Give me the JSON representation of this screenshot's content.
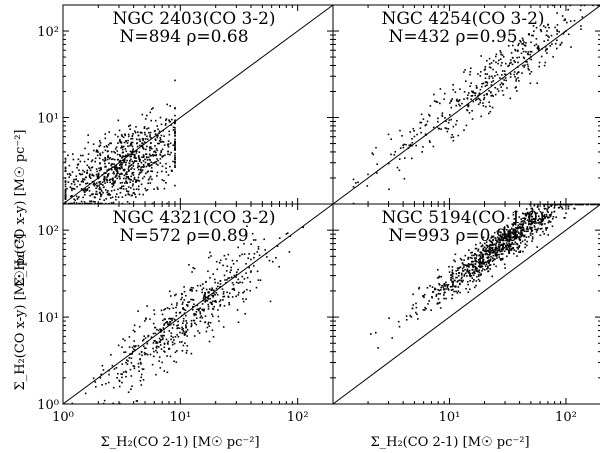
{
  "x_axis_label": "Σ_H₂(CO 2-1) [M☉ pc⁻²]",
  "y_axis_label": "Σ_H₂(CO x-y) [M☉ pc⁻²]",
  "chart_data": [
    {
      "type": "scatter",
      "title": "NGC 2403(CO 3-2)",
      "subtitle": "N=894  ρ=0.68",
      "xscale": "log",
      "yscale": "log",
      "xlim": [
        1,
        200
      ],
      "ylim": [
        1,
        200
      ],
      "x_ticks": [],
      "y_ticks": [
        "10¹",
        "10²"
      ],
      "grid": false,
      "one_to_one_line": true,
      "cloud": {
        "count": 894,
        "x_center": 3.2,
        "x_sd_dex": 0.28,
        "x_range": [
          1.05,
          9.0
        ],
        "slope": 0.55,
        "intercept": 0.15,
        "scatter_dex": 0.22
      }
    },
    {
      "type": "scatter",
      "title": "NGC 4254(CO 3-2)",
      "subtitle": "N=432  ρ=0.95",
      "xscale": "log",
      "yscale": "log",
      "xlim": [
        1,
        200
      ],
      "ylim": [
        1,
        200
      ],
      "x_ticks": [],
      "y_ticks": [],
      "grid": false,
      "one_to_one_line": true,
      "cloud": {
        "count": 432,
        "x_center": 25,
        "x_sd_dex": 0.45,
        "x_range": [
          1.5,
          195
        ],
        "slope": 1.0,
        "intercept": 0.07,
        "scatter_dex": 0.16
      }
    },
    {
      "type": "scatter",
      "title": "NGC 4321(CO 3-2)",
      "subtitle": "N=572  ρ=0.89",
      "xscale": "log",
      "yscale": "log",
      "xlim": [
        1,
        200
      ],
      "ylim": [
        1,
        200
      ],
      "x_ticks": [
        "10⁰",
        "10¹",
        "10²"
      ],
      "y_ticks": [
        "10⁰",
        "10¹",
        "10²"
      ],
      "grid": false,
      "one_to_one_line": true,
      "cloud": {
        "count": 572,
        "x_center": 11,
        "x_sd_dex": 0.35,
        "x_range": [
          1.2,
          120
        ],
        "slope": 1.05,
        "intercept": -0.1,
        "scatter_dex": 0.2
      }
    },
    {
      "type": "scatter",
      "title": "NGC 5194(CO 1-0)",
      "subtitle": "N=993  ρ=0.96",
      "xscale": "log",
      "yscale": "log",
      "xlim": [
        1,
        200
      ],
      "ylim": [
        1,
        200
      ],
      "x_ticks": [
        "10¹",
        "10²"
      ],
      "y_ticks": [],
      "grid": false,
      "one_to_one_line": true,
      "cloud": {
        "count": 993,
        "x_center": 28,
        "x_sd_dex": 0.35,
        "x_range": [
          2.0,
          195
        ],
        "slope": 0.95,
        "intercept": 0.45,
        "scatter_dex": 0.1
      }
    }
  ]
}
